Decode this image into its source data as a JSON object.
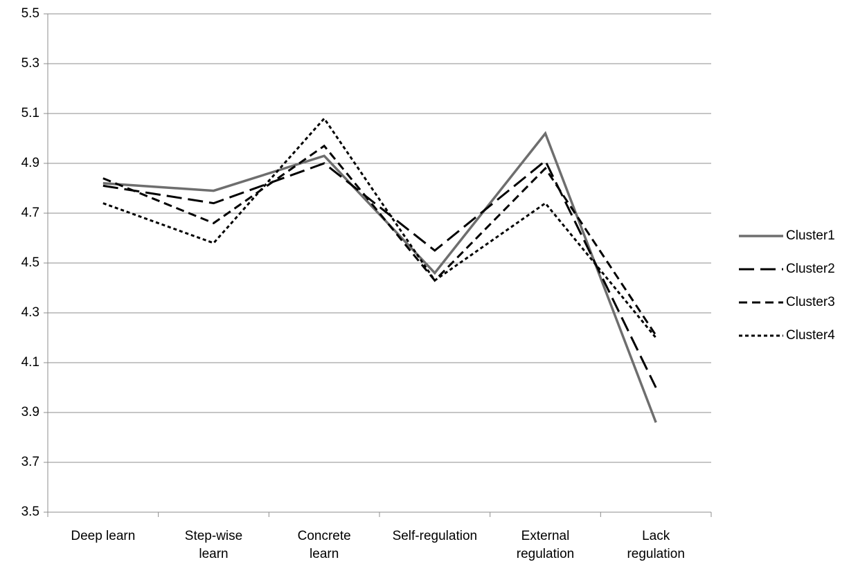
{
  "chart_data": {
    "type": "line",
    "categories": [
      "Deep learn",
      "Step-wise learn",
      "Concrete learn",
      "Self-regulation",
      "External regulation",
      "Lack regulation"
    ],
    "series": [
      {
        "name": "Cluster1",
        "color": "#6e6e6e",
        "dash": "solid",
        "values": [
          4.82,
          4.79,
          4.93,
          4.46,
          5.02,
          3.86
        ]
      },
      {
        "name": "Cluster2",
        "color": "#000000",
        "dash": "long-dash",
        "values": [
          4.81,
          4.74,
          4.9,
          4.55,
          4.91,
          4.0
        ]
      },
      {
        "name": "Cluster3",
        "color": "#000000",
        "dash": "dash",
        "values": [
          4.84,
          4.66,
          4.97,
          4.43,
          4.88,
          4.21
        ]
      },
      {
        "name": "Cluster4",
        "color": "#000000",
        "dash": "dot",
        "values": [
          4.74,
          4.58,
          5.08,
          4.43,
          4.74,
          4.2
        ]
      }
    ],
    "ylim": [
      3.5,
      5.5
    ],
    "yticks": [
      3.5,
      3.7,
      3.9,
      4.1,
      4.3,
      4.5,
      4.7,
      4.9,
      5.1,
      5.3,
      5.5
    ],
    "grid": true,
    "legend": "right"
  }
}
